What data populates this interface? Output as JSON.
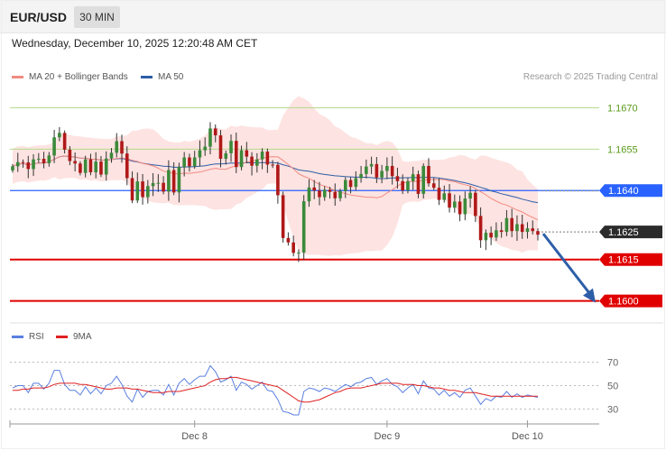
{
  "header": {
    "symbol": "EUR/USD",
    "timeframe": "30 MIN"
  },
  "timestamp": "Wednesday, December 10, 2025 12:20:48 AM CET",
  "legend": {
    "ma20": {
      "label": "MA 20 + Bollinger Bands",
      "color": "#f28b82"
    },
    "ma50": {
      "label": "MA 50",
      "color": "#2d5ea8"
    }
  },
  "copyright": "Research © 2025 Trading Central",
  "rsi_legend": {
    "rsi": {
      "label": "RSI",
      "color": "#5a7fe0"
    },
    "ma9": {
      "label": "9MA",
      "color": "#e02020"
    }
  },
  "chart_data": [
    {
      "type": "candlestick",
      "ylim": [
        1.1593,
        1.1678
      ],
      "levels": [
        {
          "label": "1.1670",
          "value": 1.167,
          "color": "#8bc34a",
          "style": "thin-green"
        },
        {
          "label": "1.1655",
          "value": 1.1655,
          "color": "#8bc34a",
          "style": "thin-green"
        },
        {
          "label": "1.1640",
          "value": 1.164,
          "color": "#2962ff",
          "style": "blue"
        },
        {
          "label": "1.1625",
          "value": 1.1625,
          "color": "#333333",
          "style": "current"
        },
        {
          "label": "1.1615",
          "value": 1.1615,
          "color": "#e00000",
          "style": "red"
        },
        {
          "label": "1.1600",
          "value": 1.16,
          "color": "#e00000",
          "style": "red"
        }
      ],
      "forecast_arrow": {
        "from": 1.1625,
        "to": 1.16,
        "color": "#2d5ea8"
      },
      "close": [
        1.16488,
        1.16503,
        1.16502,
        1.16478,
        1.16513,
        1.16515,
        1.16499,
        1.16527,
        1.16593,
        1.16609,
        1.16548,
        1.16507,
        1.16498,
        1.16464,
        1.16513,
        1.16466,
        1.16505,
        1.16458,
        1.16516,
        1.16537,
        1.16579,
        1.16534,
        1.16445,
        1.16364,
        1.16433,
        1.16376,
        1.16416,
        1.16427,
        1.16428,
        1.16396,
        1.16474,
        1.16393,
        1.16485,
        1.1652,
        1.16488,
        1.1652,
        1.16546,
        1.16559,
        1.16625,
        1.166,
        1.16515,
        1.16535,
        1.1658,
        1.16485,
        1.16546,
        1.16523,
        1.1649,
        1.16513,
        1.16541,
        1.16494,
        1.16493,
        1.16383,
        1.16228,
        1.16212,
        1.16174,
        1.16175,
        1.16361,
        1.16411,
        1.164,
        1.16376,
        1.16403,
        1.16395,
        1.16372,
        1.16398,
        1.16438,
        1.16413,
        1.16445,
        1.1646,
        1.16487,
        1.16496,
        1.16447,
        1.16471,
        1.16489,
        1.16452,
        1.16434,
        1.164,
        1.16434,
        1.16459,
        1.16388,
        1.16489,
        1.16426,
        1.1641,
        1.16366,
        1.1639,
        1.16338,
        1.1636,
        1.16314,
        1.16371,
        1.16392,
        1.16308,
        1.1622,
        1.16247,
        1.1623,
        1.16256,
        1.1625,
        1.163,
        1.16253,
        1.16278,
        1.1625,
        1.16263,
        1.16253,
        1.1624
      ],
      "x_tick_labels": [
        "Dec 8",
        "Dec 9",
        "Dec 10"
      ]
    },
    {
      "type": "line",
      "ylim": [
        25,
        75
      ],
      "y_ticks": [
        "70",
        "50",
        "30"
      ],
      "series": [
        {
          "name": "RSI",
          "color": "#5a7fe0",
          "values": [
            48,
            50,
            50,
            44,
            52,
            52,
            47,
            52,
            63,
            63,
            51,
            46,
            46,
            42,
            49,
            43,
            48,
            43,
            50,
            52,
            58,
            51,
            41,
            36,
            47,
            40,
            45,
            46,
            46,
            42,
            51,
            42,
            52,
            56,
            51,
            55,
            58,
            58,
            67,
            62,
            53,
            55,
            58,
            46,
            53,
            51,
            47,
            50,
            53,
            46,
            45,
            38,
            28,
            27,
            25,
            25,
            45,
            48,
            47,
            45,
            48,
            47,
            45,
            48,
            51,
            49,
            52,
            53,
            56,
            57,
            51,
            54,
            56,
            51,
            49,
            44,
            48,
            51,
            43,
            54,
            48,
            47,
            42,
            46,
            41,
            44,
            40,
            46,
            48,
            41,
            34,
            39,
            37,
            41,
            40,
            45,
            40,
            43,
            40,
            42,
            41,
            40
          ]
        },
        {
          "name": "9MA",
          "color": "#e02020",
          "values": [
            46,
            46,
            47,
            47,
            48,
            48,
            48,
            49,
            51,
            52,
            52,
            52,
            52,
            51,
            51,
            50,
            49,
            48,
            47,
            47,
            48,
            48,
            48,
            47,
            47,
            46,
            45,
            44,
            44,
            44,
            45,
            45,
            45,
            46,
            47,
            48,
            49,
            50,
            53,
            55,
            56,
            56,
            57,
            57,
            56,
            55,
            54,
            53,
            52,
            51,
            50,
            49,
            46,
            43,
            40,
            37,
            36,
            36,
            37,
            38,
            40,
            42,
            44,
            45,
            47,
            48,
            48,
            48,
            49,
            50,
            51,
            52,
            52,
            52,
            52,
            51,
            51,
            51,
            50,
            50,
            49,
            48,
            48,
            47,
            46,
            46,
            45,
            44,
            44,
            44,
            43,
            42,
            41,
            41,
            41,
            41,
            41,
            41,
            41,
            41,
            41,
            41
          ]
        }
      ]
    }
  ]
}
